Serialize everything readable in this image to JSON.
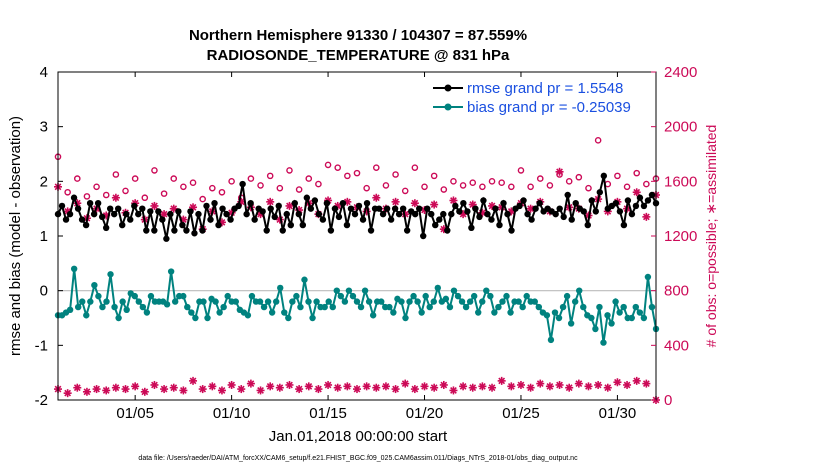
{
  "chart_data": {
    "type": "line",
    "title": "Northern Hemisphere 91330 / 104307 = 87.559%",
    "subtitle": "RADIOSONDE_TEMPERATURE @ 831 hPa",
    "xlabel": "Jan.01,2018 00:00:00 start",
    "ylabel": "rmse and bias (model - observation)",
    "ylabel_right": "# of obs: o=possible; ∗=assimilated",
    "xlim": [
      1,
      32
    ],
    "ylim": [
      -2,
      4
    ],
    "ylim_right": [
      0,
      2400
    ],
    "x_tick_values": [
      5,
      10,
      15,
      20,
      25,
      30
    ],
    "x_tick_labels": [
      "01/05",
      "01/10",
      "01/15",
      "01/20",
      "01/25",
      "01/30"
    ],
    "y_ticks": [
      "-2",
      "-1",
      "0",
      "1",
      "2",
      "3",
      "4"
    ],
    "y_ticks_right": [
      "0",
      "400",
      "800",
      "1200",
      "1600",
      "2000",
      "2400"
    ],
    "footnote": "data file: /Users/raeder/DAI/ATM_forcXX/CAM6_setup/f.e21.FHIST_BGC.f09_025.CAM6assim.011/Diags_NTrS_2018-01/obs_diag_output.nc",
    "legend": {
      "position": "top-right",
      "entries": [
        {
          "label": "rmse grand pr = 1.5548",
          "color": "#000000"
        },
        {
          "label": "bias grand pr = -0.25039",
          "color": "#00827f"
        }
      ]
    },
    "zero_line": true,
    "grid": false,
    "colors": {
      "rmse": "#000000",
      "bias": "#00827f",
      "obs": "#cc0a57",
      "zero": "#bbbbbb"
    },
    "series": [
      {
        "name": "rmse",
        "axis": "left",
        "values": [
          1.4,
          1.55,
          1.3,
          1.4,
          1.7,
          1.5,
          1.3,
          1.2,
          1.6,
          1.4,
          1.6,
          1.35,
          1.15,
          1.5,
          1.4,
          1.5,
          1.2,
          1.4,
          1.3,
          1.55,
          1.4,
          1.5,
          1.1,
          1.45,
          1.1,
          1.45,
          1.3,
          0.95,
          1.4,
          1.1,
          1.45,
          1.2,
          1.1,
          1.45,
          1.05,
          1.4,
          1.1,
          1.55,
          1.3,
          1.6,
          1.2,
          1.5,
          1.4,
          1.3,
          1.5,
          1.55,
          1.95,
          1.4,
          1.6,
          1.3,
          1.5,
          1.45,
          1.1,
          1.5,
          1.35,
          1.55,
          1.1,
          1.4,
          1.2,
          1.6,
          1.4,
          1.2,
          1.7,
          1.5,
          1.65,
          1.4,
          1.3,
          1.6,
          1.1,
          1.5,
          1.35,
          1.6,
          1.2,
          1.5,
          1.4,
          1.55,
          1.3,
          1.6,
          1.1,
          1.5,
          1.5,
          1.4,
          1.5,
          1.3,
          1.5,
          1.4,
          1.5,
          1.1,
          1.45,
          1.4,
          1.5,
          1.0,
          1.5,
          1.4,
          1.2,
          1.3,
          1.4,
          1.1,
          1.4,
          1.55,
          1.45,
          1.6,
          1.45,
          1.15,
          1.5,
          1.35,
          1.65,
          1.4,
          1.3,
          1.5,
          1.2,
          1.6,
          1.4,
          1.1,
          1.5,
          1.55,
          1.65,
          1.4,
          1.3,
          1.5,
          1.6,
          1.45,
          1.5,
          1.45,
          1.4,
          1.5,
          1.35,
          1.75,
          1.3,
          1.6,
          1.5,
          1.45,
          1.2,
          1.65,
          1.45,
          1.8,
          2.1,
          1.5,
          1.55,
          1.6,
          1.45,
          1.2,
          1.65,
          1.4,
          1.55,
          1.7,
          1.55,
          1.65,
          1.75,
          1.6
        ]
      },
      {
        "name": "bias",
        "axis": "left",
        "values": [
          -0.45,
          -0.45,
          -0.4,
          -0.35,
          0.4,
          -0.3,
          -0.2,
          -0.45,
          -0.2,
          0.1,
          -0.1,
          -0.3,
          -0.2,
          0.3,
          -0.3,
          -0.5,
          -0.2,
          -0.35,
          -0.05,
          -0.1,
          -0.2,
          -0.3,
          -0.4,
          -0.1,
          -0.2,
          -0.2,
          -0.2,
          -0.25,
          0.35,
          -0.2,
          -0.1,
          -0.1,
          -0.3,
          -0.4,
          -0.5,
          -0.2,
          -0.2,
          -0.5,
          -0.15,
          -0.2,
          -0.4,
          -0.3,
          -0.1,
          -0.2,
          -0.2,
          -0.35,
          -0.4,
          -0.45,
          -0.1,
          -0.2,
          -0.2,
          -0.3,
          -0.2,
          -0.4,
          -0.2,
          0.05,
          -0.4,
          -0.5,
          -0.2,
          -0.1,
          -0.3,
          0.2,
          -0.2,
          -0.5,
          -0.2,
          -0.3,
          -0.3,
          -0.2,
          -0.3,
          0.0,
          -0.1,
          -0.2,
          0.0,
          -0.1,
          -0.2,
          -0.3,
          0.0,
          -0.2,
          -0.45,
          -0.2,
          -0.2,
          -0.3,
          -0.3,
          -0.4,
          -0.15,
          -0.2,
          -0.5,
          -0.2,
          -0.1,
          -0.2,
          -0.4,
          -0.1,
          -0.3,
          -0.2,
          0.05,
          -0.2,
          -0.15,
          -0.3,
          0.0,
          -0.1,
          -0.2,
          -0.3,
          -0.2,
          -0.1,
          -0.4,
          -0.2,
          0.0,
          -0.1,
          -0.4,
          -0.3,
          -0.2,
          -0.1,
          -0.4,
          -0.2,
          -0.2,
          -0.3,
          -0.1,
          -0.2,
          -0.2,
          -0.3,
          -0.4,
          -0.45,
          -0.9,
          -0.4,
          -0.5,
          -0.3,
          -0.1,
          -0.6,
          -0.2,
          0.0,
          -0.3,
          -0.45,
          -0.5,
          -0.7,
          -0.3,
          -0.95,
          -0.45,
          -0.6,
          -0.2,
          -0.4,
          -0.3,
          -0.5,
          -0.5,
          -0.3,
          -0.4,
          -0.5,
          0.25,
          -0.3,
          -0.7
        ]
      },
      {
        "name": "possible",
        "axis": "right",
        "marker": "o",
        "x": [
          1.0,
          1.5,
          2.0,
          2.5,
          3.0,
          3.5,
          4.0,
          4.5,
          5.0,
          5.5,
          6.0,
          6.5,
          7.0,
          7.5,
          8.0,
          8.5,
          9.0,
          9.5,
          10.0,
          10.5,
          11.0,
          11.5,
          12.0,
          12.5,
          13.0,
          13.5,
          14.0,
          14.5,
          15.0,
          15.5,
          16.0,
          16.5,
          17.0,
          17.5,
          18.0,
          18.5,
          19.0,
          19.5,
          20.0,
          20.5,
          21.0,
          21.5,
          22.0,
          22.5,
          23.0,
          23.5,
          24.0,
          24.5,
          25.0,
          25.5,
          26.0,
          26.5,
          27.0,
          27.5,
          28.0,
          28.5,
          29.0,
          29.5,
          30.0,
          30.5,
          31.0,
          31.5,
          32.0
        ],
        "values": [
          1780,
          1520,
          1620,
          1490,
          1560,
          1500,
          1650,
          1530,
          1620,
          1480,
          1680,
          1510,
          1620,
          1560,
          1590,
          1470,
          1550,
          1520,
          1600,
          1480,
          1620,
          1570,
          1640,
          1550,
          1680,
          1540,
          1620,
          1580,
          1720,
          1700,
          1640,
          1660,
          1550,
          1700,
          1570,
          1650,
          1530,
          1700,
          1560,
          1640,
          1540,
          1600,
          1570,
          1590,
          1560,
          1600,
          1590,
          1560,
          1680,
          1560,
          1620,
          1570,
          1650,
          1600,
          1630,
          1550,
          1900,
          1580,
          1640,
          1560,
          1660,
          1580,
          1620
        ]
      },
      {
        "name": "assimilated",
        "axis": "right",
        "marker": "*",
        "x": [
          1.0,
          1.5,
          2.0,
          2.5,
          3.0,
          3.5,
          4.0,
          4.5,
          5.0,
          5.5,
          6.0,
          6.5,
          7.0,
          7.5,
          8.0,
          8.5,
          9.0,
          9.5,
          10.0,
          10.5,
          11.0,
          11.5,
          12.0,
          12.5,
          13.0,
          13.5,
          14.0,
          14.5,
          15.0,
          15.5,
          16.0,
          16.5,
          17.0,
          17.5,
          18.0,
          18.5,
          19.0,
          19.5,
          20.0,
          20.5,
          21.0,
          21.5,
          22.0,
          22.5,
          23.0,
          23.5,
          24.0,
          24.5,
          25.0,
          25.5,
          26.0,
          26.5,
          27.0,
          27.5,
          28.0,
          28.5,
          29.0,
          29.5,
          30.0,
          30.5,
          31.0,
          31.5,
          32.0
        ],
        "values": [
          1560,
          1380,
          1440,
          1330,
          1400,
          1350,
          1480,
          1370,
          1440,
          1320,
          1420,
          1360,
          1400,
          1320,
          1410,
          1250,
          1380,
          1300,
          1370,
          1450,
          1410,
          1360,
          1450,
          1320,
          1420,
          1390,
          1440,
          1360,
          1460,
          1420,
          1450,
          1410,
          1380,
          1480,
          1400,
          1450,
          1360,
          1440,
          1390,
          1430,
          1250,
          1460,
          1360,
          1430,
          1370,
          1420,
          1410,
          1380,
          1440,
          1400,
          1450,
          1380,
          1670,
          1410,
          1400,
          1350,
          1470,
          1380,
          1450,
          1400,
          1520,
          1340,
          1500
        ]
      },
      {
        "name": "bias-obs-near-zero",
        "axis": "right",
        "marker": "*",
        "note": "low-count markers near bottom axis",
        "x": [
          1.0,
          1.5,
          2.0,
          2.5,
          3.0,
          3.5,
          4.0,
          4.5,
          5.0,
          5.5,
          6.0,
          6.5,
          7.0,
          7.5,
          8.0,
          8.5,
          9.0,
          9.5,
          10.0,
          10.5,
          11.0,
          11.5,
          12.0,
          12.5,
          13.0,
          13.5,
          14.0,
          14.5,
          15.0,
          15.5,
          16.0,
          16.5,
          17.0,
          17.5,
          18.0,
          18.5,
          19.0,
          19.5,
          20.0,
          20.5,
          21.0,
          21.5,
          22.0,
          22.5,
          23.0,
          23.5,
          24.0,
          24.5,
          25.0,
          25.5,
          26.0,
          26.5,
          27.0,
          27.5,
          28.0,
          28.5,
          29.0,
          29.5,
          30.0,
          30.5,
          31.0,
          31.5,
          32.0
        ],
        "values": [
          80,
          50,
          90,
          60,
          80,
          70,
          90,
          80,
          100,
          60,
          110,
          80,
          90,
          70,
          140,
          80,
          100,
          70,
          110,
          80,
          120,
          70,
          100,
          90,
          110,
          80,
          100,
          80,
          110,
          90,
          100,
          80,
          100,
          90,
          100,
          80,
          120,
          80,
          100,
          90,
          110,
          70,
          100,
          90,
          100,
          90,
          140,
          100,
          110,
          90,
          120,
          100,
          110,
          90,
          120,
          100,
          110,
          90,
          130,
          110,
          140,
          120,
          0
        ]
      }
    ]
  }
}
